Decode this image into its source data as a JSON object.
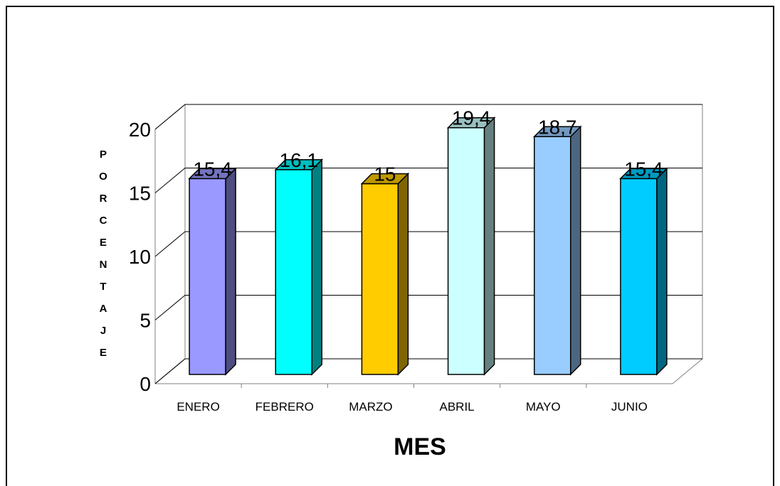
{
  "chart_data": {
    "type": "bar3d",
    "categories": [
      "ENERO",
      "FEBRERO",
      "MARZO",
      "ABRIL",
      "MAYO",
      "JUNIO"
    ],
    "values": [
      15.4,
      16.1,
      15,
      19.4,
      18.7,
      15.4
    ],
    "value_labels": [
      "15,4",
      "16,1",
      "15",
      "19,4",
      "18,7",
      "15,4"
    ],
    "colors": [
      "#9999ff",
      "#00ffff",
      "#ffcc00",
      "#ccffff",
      "#99ccff",
      "#00ccff"
    ],
    "ylim": [
      0,
      20
    ],
    "yticks": [
      0,
      5,
      10,
      15,
      20
    ],
    "grid": true,
    "xlabel": "MES",
    "ylabel": "PORCENTAJE"
  }
}
